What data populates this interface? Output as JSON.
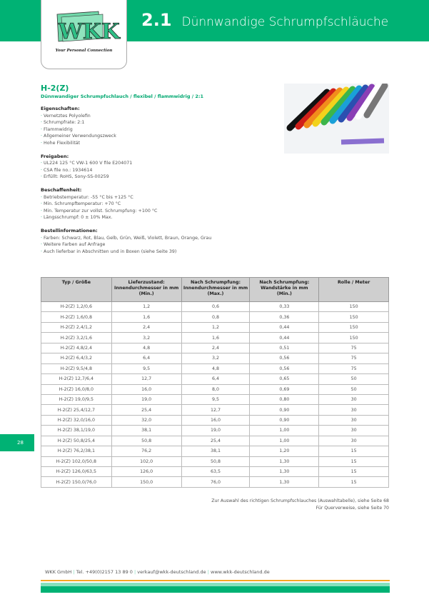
{
  "header": {
    "chapter": "2.1",
    "title": "Dünnwandige Schrumpfschläuche",
    "logo_text": "WKK",
    "tagline": "Your Personal Connection"
  },
  "product": {
    "name": "H-2(Z)",
    "subtitle": "Dünnwandiger Schrumpfschlauch / flexibel / flammwidrig / 2:1",
    "sections": [
      {
        "title": "Eigenschaften:",
        "items": [
          "Vernetztes Polyolefin",
          "Schrumpfrate: 2:1",
          "Flammwidrig",
          "Allgemeiner Verwendungszweck",
          "Hohe Flexibilität"
        ]
      },
      {
        "title": "Freigaben:",
        "items": [
          "UL224 125 °C VW-1 600 V file E204071",
          "CSA file no.: 1934614",
          "Erfüllt: RoHS, Sony-SS-00259"
        ]
      },
      {
        "title": "Beschaffenheit:",
        "items": [
          "Betriebstemperatur: -55 °C bis +125 °C",
          "Min. Schrumpftemperatur: +70 °C",
          "Min. Temperatur zur vollst. Schrumpfung: +100 °C",
          "Längsschrumpf: 0 ± 10% Max."
        ]
      },
      {
        "title": "Bestellinformationen:",
        "items": [
          "Farben: Schwarz, Rot, Blau, Gelb, Grün, Weiß, Violett, Braun, Orange, Grau",
          "Weitere Farben auf Anfrage",
          "Auch lieferbar in Abschnitten und in Boxen (siehe Seite 39)"
        ]
      }
    ]
  },
  "table": {
    "headers": [
      [
        "Typ / Größe"
      ],
      [
        "Lieferzustand:",
        "Innendurchmesser in mm",
        "(Min.)"
      ],
      [
        "Nach Schrumpfung:",
        "Innendurchmesser in mm",
        "(Max.)"
      ],
      [
        "Nach Schrumpfung:",
        "Wandstärke in mm",
        "(Min.)"
      ],
      [
        "Rolle / Meter"
      ]
    ],
    "rows": [
      [
        "H-2(Z) 1,2/0,6",
        "1,2",
        "0,6",
        "0,33",
        "150"
      ],
      [
        "H-2(Z) 1,6/0,8",
        "1,6",
        "0,8",
        "0,36",
        "150"
      ],
      [
        "H-2(Z) 2,4/1,2",
        "2,4",
        "1,2",
        "0,44",
        "150"
      ],
      [
        "H-2(Z) 3,2/1,6",
        "3,2",
        "1,6",
        "0,44",
        "150"
      ],
      [
        "H-2(Z) 4,8/2,4",
        "4,8",
        "2,4",
        "0,51",
        "75"
      ],
      [
        "H-2(Z) 6,4/3,2",
        "6,4",
        "3,2",
        "0,56",
        "75"
      ],
      [
        "H-2(Z) 9,5/4,8",
        "9,5",
        "4,8",
        "0,56",
        "75"
      ],
      [
        "H-2(Z) 12,7/6,4",
        "12,7",
        "6,4",
        "0,65",
        "50"
      ],
      [
        "H-2(Z) 16,0/8,0",
        "16,0",
        "8,0",
        "0,69",
        "50"
      ],
      [
        "H-2(Z) 19,0/9,5",
        "19,0",
        "9,5",
        "0,80",
        "30"
      ],
      [
        "H-2(Z) 25,4/12,7",
        "25,4",
        "12,7",
        "0,90",
        "30"
      ],
      [
        "H-2(Z) 32,0/16,0",
        "32,0",
        "16,0",
        "0,90",
        "30"
      ],
      [
        "H-2(Z) 38,1/19,0",
        "38,1",
        "19,0",
        "1,00",
        "30"
      ],
      [
        "H-2(Z) 50,8/25,4",
        "50,8",
        "25,4",
        "1,00",
        "30"
      ],
      [
        "H-2(Z) 76,2/38,1",
        "76,2",
        "38,1",
        "1,20",
        "15"
      ],
      [
        "H-2(Z) 102,0/50,8",
        "102,0",
        "50,8",
        "1,30",
        "15"
      ],
      [
        "H-2(Z) 126,0/63,5",
        "126,0",
        "63,5",
        "1,30",
        "15"
      ],
      [
        "H-2(Z) 150,0/76,0",
        "150,0",
        "76,0",
        "1,30",
        "15"
      ]
    ]
  },
  "page_number": "28",
  "notes": [
    "Zur Auswahl des richtigen Schrumpfschlauches (Auswahltabelle), siehe Seite 68",
    "Für Querverweise, siehe Seite 70"
  ],
  "footer": {
    "company": "WKK GmbH",
    "phone": "Tel. +49(0)2157 13 89 0",
    "email": "verkauf@wkk-deutschland.de",
    "web": "www.wkk-deutschland.de"
  },
  "colors": {
    "brand_green": "#00b274",
    "light_green": "#86e0bd",
    "orange": "#f5a623"
  }
}
